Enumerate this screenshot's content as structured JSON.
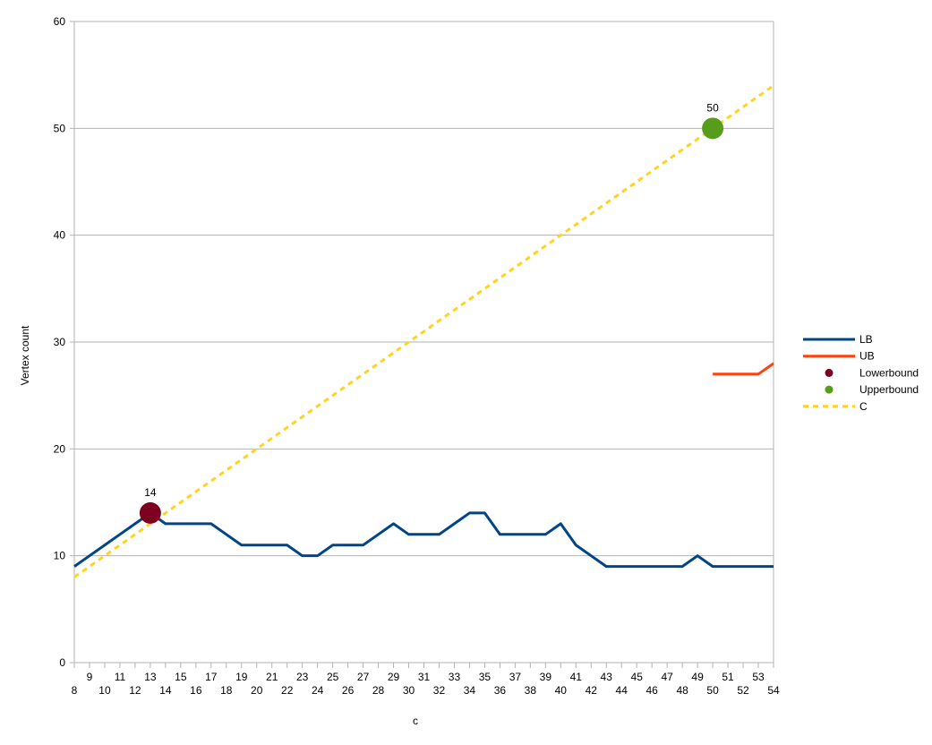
{
  "chart_data": {
    "type": "line",
    "title": "",
    "xlabel": "c",
    "ylabel": "Vertex count",
    "xlim": [
      8,
      54
    ],
    "ylim": [
      0,
      60
    ],
    "y_ticks": [
      0,
      10,
      20,
      30,
      40,
      50,
      60
    ],
    "x_ticks": [
      8,
      9,
      10,
      11,
      12,
      13,
      14,
      15,
      16,
      17,
      18,
      19,
      20,
      21,
      22,
      23,
      24,
      25,
      26,
      27,
      28,
      29,
      30,
      31,
      32,
      33,
      34,
      35,
      36,
      37,
      38,
      39,
      40,
      41,
      42,
      43,
      44,
      45,
      46,
      47,
      48,
      49,
      50,
      51,
      52,
      53,
      54
    ],
    "grid": "horizontal",
    "legend_position": "right",
    "colors": {
      "LB": "#004586",
      "UB": "#ff420e",
      "Lowerbound": "#7e0021",
      "Upperbound": "#579d1c",
      "C": "#ffd320",
      "grid": "#b3b3b3",
      "axis": "#b3b3b3"
    },
    "series": [
      {
        "name": "LB",
        "kind": "line",
        "x": [
          8,
          9,
          10,
          11,
          12,
          13,
          14,
          15,
          16,
          17,
          18,
          19,
          20,
          21,
          22,
          23,
          24,
          25,
          26,
          27,
          28,
          29,
          30,
          31,
          32,
          33,
          34,
          35,
          36,
          37,
          38,
          39,
          40,
          41,
          42,
          43,
          44,
          45,
          46,
          47,
          48,
          49,
          50,
          51,
          52,
          53,
          54
        ],
        "y": [
          9,
          10,
          11,
          12,
          13,
          14,
          13,
          13,
          13,
          13,
          12,
          11,
          11,
          11,
          11,
          10,
          10,
          11,
          11,
          11,
          12,
          13,
          12,
          12,
          12,
          13,
          14,
          14,
          12,
          12,
          12,
          12,
          13,
          11,
          10,
          9,
          9,
          9,
          9,
          9,
          9,
          10,
          9,
          9,
          9,
          9,
          9
        ]
      },
      {
        "name": "UB",
        "kind": "line",
        "x": [
          50,
          51,
          52,
          53,
          54
        ],
        "y": [
          27,
          27,
          27,
          27,
          28
        ]
      },
      {
        "name": "Lowerbound",
        "kind": "point",
        "x": [
          13
        ],
        "y": [
          14
        ],
        "labels": [
          "14"
        ]
      },
      {
        "name": "Upperbound",
        "kind": "point",
        "x": [
          50
        ],
        "y": [
          50
        ],
        "labels": [
          "50"
        ]
      },
      {
        "name": "C",
        "kind": "dashed-line",
        "x": [
          8,
          54
        ],
        "y": [
          8,
          54
        ]
      }
    ]
  }
}
